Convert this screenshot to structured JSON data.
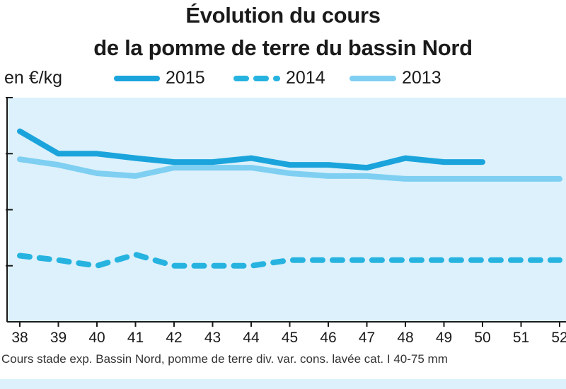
{
  "chart_data": {
    "type": "line",
    "title_lines": [
      "Évolution du cours",
      "de la pomme de terre du bassin Nord"
    ],
    "ylabel": "en €/kg",
    "x": [
      38,
      39,
      40,
      41,
      42,
      43,
      44,
      45,
      46,
      47,
      48,
      49,
      50,
      51,
      52
    ],
    "x_tick_labels": [
      "38",
      "39",
      "40",
      "41",
      "42",
      "43",
      "44",
      "45",
      "46",
      "47",
      "48",
      "49",
      "50",
      "51",
      "52"
    ],
    "y_gridlines": [
      1,
      2,
      3,
      4
    ],
    "ylim": [
      0,
      4
    ],
    "series": [
      {
        "name": "2015",
        "style": "solid",
        "color": "#1ba4dc",
        "values": [
          3.4,
          3.0,
          3.0,
          2.92,
          2.85,
          2.85,
          2.92,
          2.8,
          2.8,
          2.75,
          2.92,
          2.85,
          2.85,
          null,
          null
        ]
      },
      {
        "name": "2014",
        "style": "dashed",
        "color": "#27b3e0",
        "values": [
          1.18,
          1.1,
          1.0,
          1.2,
          1.0,
          1.0,
          1.0,
          1.1,
          1.1,
          1.1,
          1.1,
          1.1,
          1.1,
          1.1,
          1.1
        ]
      },
      {
        "name": "2013",
        "style": "solid",
        "color": "#7ecff1",
        "values": [
          2.9,
          2.8,
          2.65,
          2.6,
          2.75,
          2.75,
          2.75,
          2.65,
          2.6,
          2.6,
          2.55,
          2.55,
          2.55,
          2.55,
          2.55
        ]
      }
    ],
    "legend_placement": "top",
    "grid": true,
    "colors": {
      "plot_bg": "#dcf1fb",
      "axis": "#1a1a1a"
    },
    "note": "Cours stade exp. Bassin Nord, pomme de terre div. var. cons. lavée cat. I 40-75 mm"
  }
}
